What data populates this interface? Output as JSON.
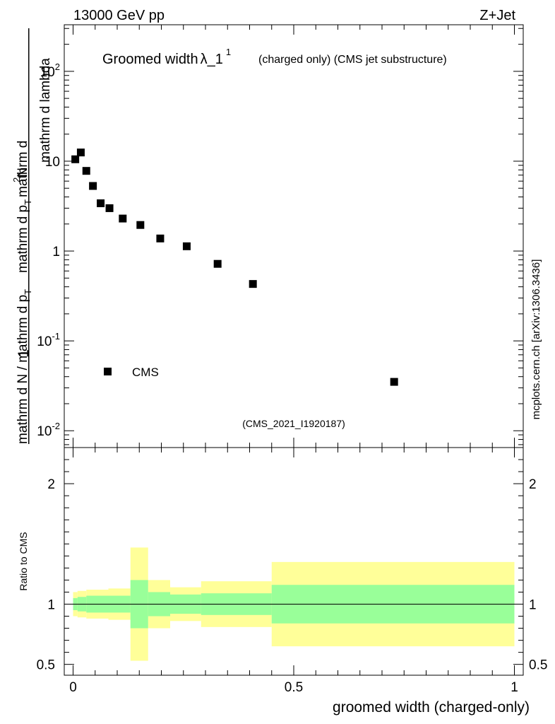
{
  "header": {
    "energy_label": "13000 GeV pp",
    "process_label": "Z+Jet",
    "side_credit": "mcplots.cern.ch [arXiv:1306.3436]"
  },
  "main_panel": {
    "title_main": "Groomed width",
    "title_symbol": "λ_1",
    "title_superscript": "1",
    "title_detail": "(charged only) (CMS jet substructure)",
    "analysis_id": "(CMS_2021_I1920187)",
    "ylabel_part1": "1",
    "ylabel_part2": "mathrm d N / mathrm d p",
    "ylabel_part3": "mathrm d p",
    "ylabel_part4": "mathrm d",
    "ylabel_part5": "N",
    "ylabel_part6": "mathrm d lambda",
    "ylabel_sub": "T",
    "ylabel_sup": "2"
  },
  "ratio_panel": {
    "ylabel": "Ratio to CMS"
  },
  "xlabel": "groomed width (charged-only)",
  "colors": {
    "band_outer": "#ffff99",
    "band_inner": "#99ff99",
    "marker": "#000000",
    "analysis_id_text": "#a0a0a0",
    "credit_text": "#808080"
  },
  "chart_data": [
    {
      "type": "scatter",
      "name": "main",
      "yscale": "log",
      "xlim": [
        -0.02,
        1.02
      ],
      "ylim": [
        0.0065,
        330
      ],
      "ytick_labels": [
        "10^{-2}",
        "10^{-1}",
        "1",
        "10",
        "10^{2}"
      ],
      "legend": {
        "entries": [
          "CMS"
        ],
        "placement": "lower-left"
      },
      "series": [
        {
          "name": "CMS",
          "marker": "square",
          "x": [
            0.005,
            0.0175,
            0.03,
            0.045,
            0.0625,
            0.0825,
            0.1125,
            0.1525,
            0.1975,
            0.2575,
            0.3275,
            0.4075,
            0.7275
          ],
          "y": [
            10.5,
            12.5,
            7.8,
            5.3,
            3.4,
            3.0,
            2.3,
            1.95,
            1.38,
            1.13,
            0.72,
            0.43,
            0.035
          ]
        }
      ]
    },
    {
      "type": "area",
      "name": "ratio",
      "xlim": [
        -0.02,
        1.02
      ],
      "ylim": [
        0.41,
        2.3
      ],
      "yticks": [
        0.5,
        1,
        2
      ],
      "ytick_labels": [
        "0.5",
        "1",
        "2"
      ],
      "xticks": [
        0,
        0.5,
        1
      ],
      "xtick_labels": [
        "0",
        "0.5",
        "1"
      ],
      "reference_line": 1,
      "bins": [
        {
          "x0": 0.0,
          "x1": 0.01,
          "inner": [
            0.95,
            1.05
          ],
          "outer": [
            0.9,
            1.1
          ]
        },
        {
          "x0": 0.01,
          "x1": 0.03,
          "inner": [
            0.94,
            1.06
          ],
          "outer": [
            0.89,
            1.11
          ]
        },
        {
          "x0": 0.03,
          "x1": 0.08,
          "inner": [
            0.93,
            1.07
          ],
          "outer": [
            0.88,
            1.12
          ]
        },
        {
          "x0": 0.08,
          "x1": 0.13,
          "inner": [
            0.93,
            1.07
          ],
          "outer": [
            0.87,
            1.13
          ]
        },
        {
          "x0": 0.13,
          "x1": 0.17,
          "inner": [
            0.8,
            1.2
          ],
          "outer": [
            0.53,
            1.47
          ]
        },
        {
          "x0": 0.17,
          "x1": 0.22,
          "inner": [
            0.9,
            1.1
          ],
          "outer": [
            0.8,
            1.2
          ]
        },
        {
          "x0": 0.22,
          "x1": 0.29,
          "inner": [
            0.92,
            1.08
          ],
          "outer": [
            0.86,
            1.14
          ]
        },
        {
          "x0": 0.29,
          "x1": 0.45,
          "inner": [
            0.91,
            1.09
          ],
          "outer": [
            0.81,
            1.19
          ]
        },
        {
          "x0": 0.45,
          "x1": 1.0,
          "inner": [
            0.84,
            1.16
          ],
          "outer": [
            0.65,
            1.35
          ]
        }
      ]
    }
  ]
}
